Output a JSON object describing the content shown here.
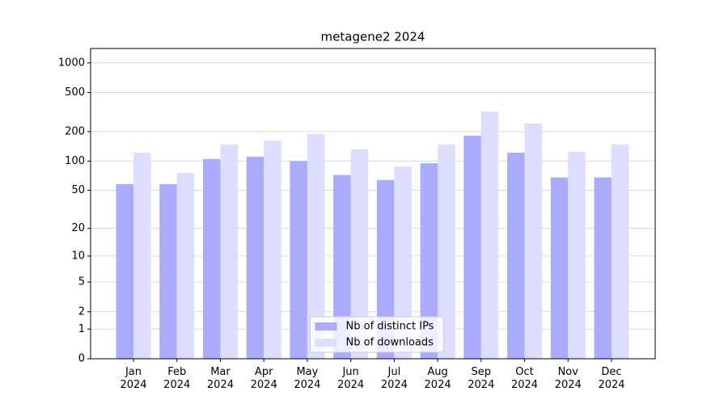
{
  "chart_data": {
    "type": "bar",
    "title": "metagene2 2024",
    "categories": [
      "Jan\n2024",
      "Feb\n2024",
      "Mar\n2024",
      "Apr\n2024",
      "May\n2024",
      "Jun\n2024",
      "Jul\n2024",
      "Aug\n2024",
      "Sep\n2024",
      "Oct\n2024",
      "Nov\n2024",
      "Dec\n2024"
    ],
    "series": [
      {
        "name": "Nb of distinct IPs",
        "color": "#aaaaff",
        "values": [
          58,
          58,
          105,
          111,
          100,
          72,
          64,
          95,
          182,
          122,
          68,
          68
        ]
      },
      {
        "name": "Nb of downloads",
        "color": "#ddddff",
        "values": [
          122,
          76,
          148,
          162,
          189,
          132,
          88,
          148,
          321,
          242,
          124,
          148
        ]
      }
    ],
    "yscale": "log1p",
    "ylim": [
      0,
      1400
    ],
    "yticks": [
      0,
      1,
      2,
      5,
      10,
      20,
      50,
      100,
      200,
      500,
      1000
    ],
    "grid": true,
    "legend": "lower center"
  }
}
